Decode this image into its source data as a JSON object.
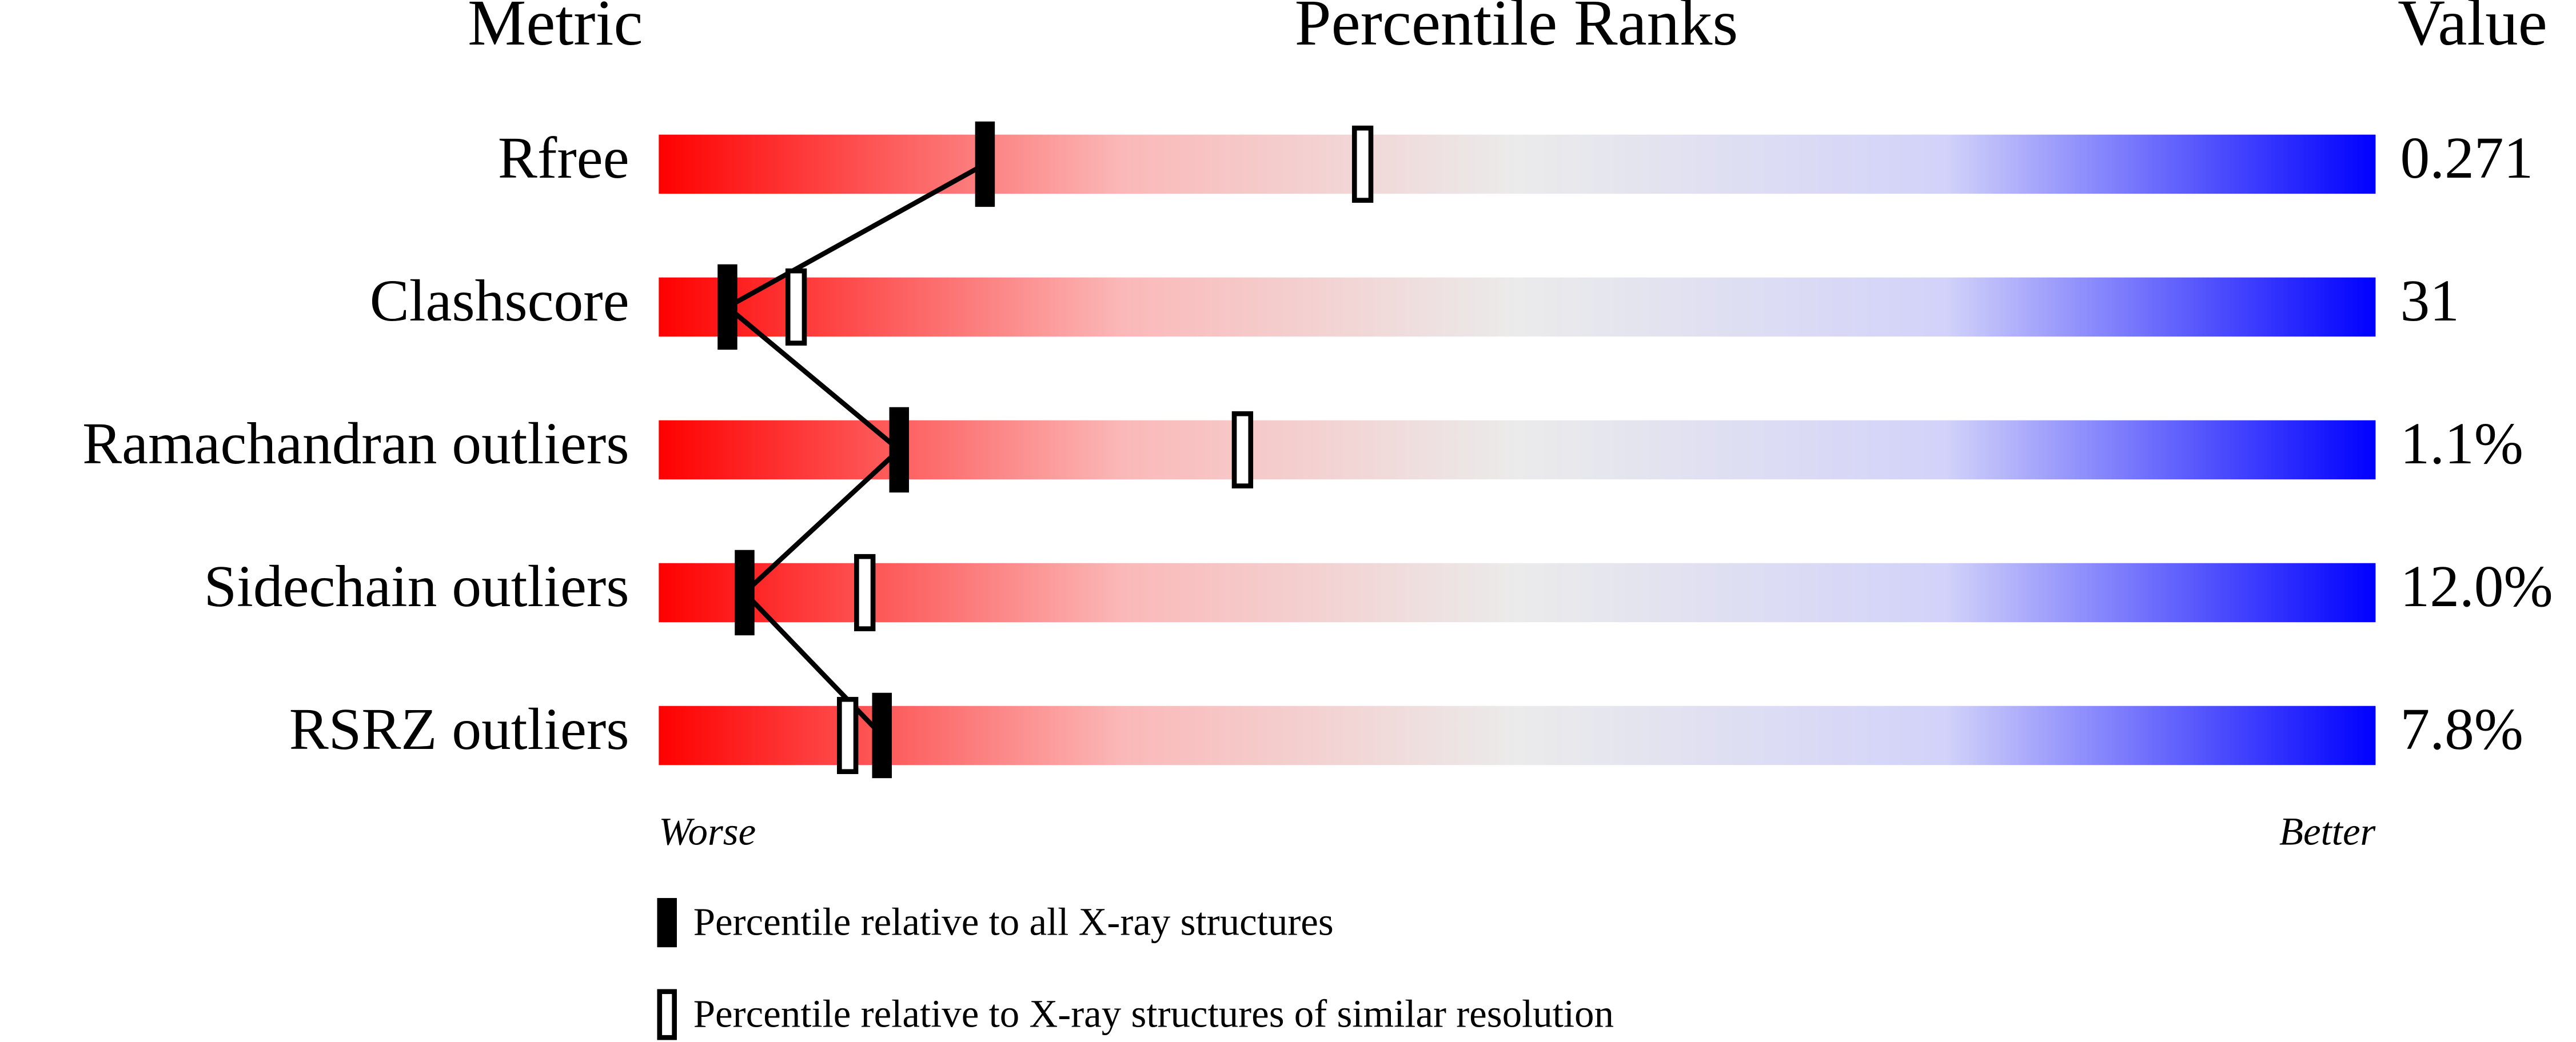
{
  "chart_data": {
    "type": "percentile",
    "headers": [
      "Metric",
      "Percentile Ranks",
      "Value"
    ],
    "categories": [
      "Rfree",
      "Clashscore",
      "Ramachandran outliers",
      "Sidechain outliers",
      "RSRZ outliers"
    ],
    "metric_values": [
      "0.271",
      "31",
      "1.1%",
      "12.0%",
      "7.8%"
    ],
    "series": [
      {
        "name": "Percentile relative to all X-ray structures",
        "color": "#000000",
        "style": "filled",
        "values": [
          19,
          4,
          14,
          5,
          13
        ]
      },
      {
        "name": "Percentile relative to X-ray structures of similar resolution",
        "color": "#000000",
        "style": "open",
        "values": [
          41,
          8,
          34,
          12,
          11
        ]
      }
    ],
    "xlim": [
      0,
      100
    ],
    "axis_ends": [
      "Worse",
      "Better"
    ]
  }
}
